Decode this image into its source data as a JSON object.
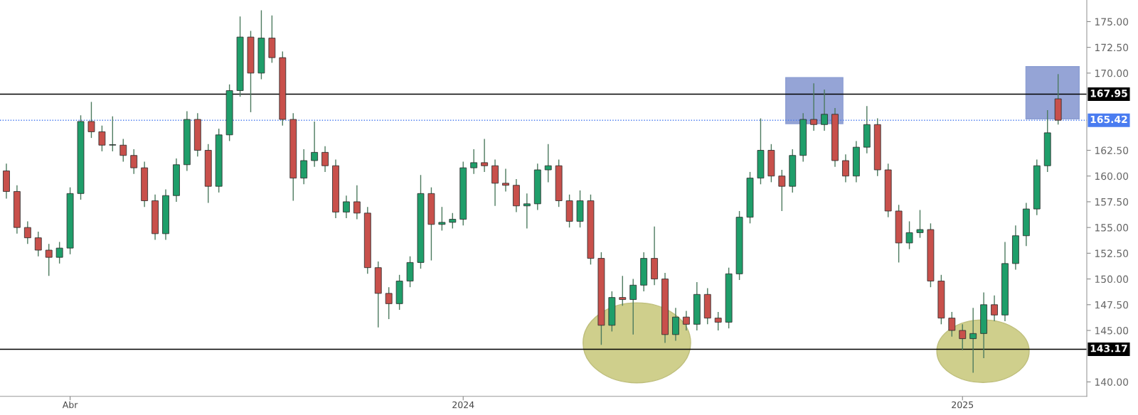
{
  "chart_data": {
    "type": "candlestick",
    "categories": [
      null,
      null,
      null,
      null,
      null,
      null,
      "Abr",
      null,
      null,
      null,
      null,
      null,
      null,
      null,
      null,
      null,
      null,
      null,
      null,
      null,
      null,
      null,
      null,
      null,
      null,
      null,
      null,
      null,
      null,
      null,
      null,
      null,
      null,
      null,
      null,
      null,
      null,
      null,
      null,
      null,
      null,
      null,
      null,
      "2024",
      null,
      null,
      null,
      null,
      null,
      null,
      null,
      null,
      null,
      null,
      null,
      null,
      null,
      null,
      null,
      null,
      null,
      null,
      null,
      null,
      null,
      null,
      null,
      null,
      null,
      null,
      null,
      null,
      null,
      null,
      null,
      null,
      null,
      null,
      null,
      null,
      null,
      null,
      null,
      null,
      null,
      null,
      null,
      null,
      null,
      null,
      "2025",
      null,
      null,
      null,
      null,
      null,
      null,
      null,
      null,
      null
    ],
    "ohlc": [
      [
        160.5,
        161.2,
        157.8,
        158.5
      ],
      [
        158.5,
        159.1,
        154.4,
        155.0
      ],
      [
        155.0,
        155.6,
        153.4,
        154.0
      ],
      [
        154.0,
        154.6,
        152.2,
        152.8
      ],
      [
        152.8,
        153.4,
        150.3,
        152.1
      ],
      [
        152.1,
        153.6,
        151.5,
        153.0
      ],
      [
        153.0,
        158.9,
        152.4,
        158.3
      ],
      [
        158.3,
        165.9,
        157.7,
        165.3
      ],
      [
        165.3,
        167.2,
        163.7,
        164.3
      ],
      [
        164.3,
        164.9,
        162.4,
        163.0
      ],
      [
        163.0,
        165.8,
        162.4,
        163.0
      ],
      [
        163.0,
        163.6,
        161.4,
        162.0
      ],
      [
        162.0,
        162.6,
        160.2,
        160.8
      ],
      [
        160.8,
        161.4,
        157.0,
        157.6
      ],
      [
        157.6,
        158.2,
        153.8,
        154.4
      ],
      [
        154.4,
        158.7,
        153.8,
        158.1
      ],
      [
        158.1,
        161.7,
        157.5,
        161.1
      ],
      [
        161.1,
        166.3,
        160.5,
        165.5
      ],
      [
        165.5,
        166.1,
        161.9,
        162.5
      ],
      [
        162.5,
        163.1,
        157.4,
        159.0
      ],
      [
        159.0,
        164.6,
        158.4,
        164.0
      ],
      [
        164.0,
        168.9,
        163.4,
        168.3
      ],
      [
        168.3,
        175.5,
        167.7,
        173.5
      ],
      [
        173.5,
        174.1,
        166.2,
        170.0
      ],
      [
        170.0,
        176.1,
        169.4,
        173.4
      ],
      [
        173.4,
        175.6,
        171.0,
        171.5
      ],
      [
        171.5,
        172.1,
        164.9,
        165.5
      ],
      [
        165.5,
        166.1,
        157.6,
        159.8
      ],
      [
        159.8,
        162.6,
        159.2,
        161.5
      ],
      [
        161.5,
        165.3,
        160.9,
        162.3
      ],
      [
        162.3,
        162.9,
        160.4,
        161.0
      ],
      [
        161.0,
        161.6,
        155.9,
        156.5
      ],
      [
        156.5,
        158.1,
        155.9,
        157.5
      ],
      [
        157.5,
        159.1,
        155.8,
        156.4
      ],
      [
        156.4,
        157.0,
        150.5,
        151.1
      ],
      [
        151.1,
        151.7,
        145.3,
        148.6
      ],
      [
        148.6,
        149.2,
        146.1,
        147.6
      ],
      [
        147.6,
        150.4,
        147.0,
        149.8
      ],
      [
        149.8,
        152.2,
        149.2,
        151.6
      ],
      [
        151.6,
        160.1,
        151.0,
        158.3
      ],
      [
        158.3,
        158.9,
        151.8,
        155.3
      ],
      [
        155.3,
        157.0,
        154.7,
        155.5
      ],
      [
        155.5,
        156.4,
        154.9,
        155.8
      ],
      [
        155.8,
        161.4,
        155.2,
        160.8
      ],
      [
        160.8,
        162.6,
        160.2,
        161.3
      ],
      [
        161.3,
        163.6,
        160.4,
        161.0
      ],
      [
        161.0,
        161.6,
        157.1,
        159.3
      ],
      [
        159.3,
        160.7,
        158.5,
        159.1
      ],
      [
        159.1,
        159.7,
        156.5,
        157.1
      ],
      [
        157.1,
        158.3,
        154.9,
        157.3
      ],
      [
        157.3,
        161.2,
        156.7,
        160.6
      ],
      [
        160.6,
        163.1,
        159.4,
        161.0
      ],
      [
        161.0,
        161.6,
        157.0,
        157.6
      ],
      [
        157.6,
        158.2,
        155.0,
        155.6
      ],
      [
        155.6,
        158.6,
        155.0,
        157.6
      ],
      [
        157.6,
        158.2,
        151.4,
        152.0
      ],
      [
        152.0,
        152.6,
        143.6,
        145.5
      ],
      [
        145.5,
        148.8,
        144.9,
        148.2
      ],
      [
        148.2,
        150.3,
        147.4,
        148.0
      ],
      [
        148.0,
        150.0,
        144.6,
        149.4
      ],
      [
        149.4,
        152.6,
        148.8,
        152.0
      ],
      [
        152.0,
        155.1,
        149.4,
        150.0
      ],
      [
        150.0,
        150.6,
        143.8,
        144.6
      ],
      [
        144.6,
        147.2,
        144.0,
        146.3
      ],
      [
        146.3,
        146.9,
        145.0,
        145.6
      ],
      [
        145.6,
        149.7,
        145.0,
        148.5
      ],
      [
        148.5,
        149.1,
        145.6,
        146.2
      ],
      [
        146.2,
        146.8,
        145.0,
        145.8
      ],
      [
        145.8,
        151.1,
        145.2,
        150.5
      ],
      [
        150.5,
        156.6,
        149.9,
        156.0
      ],
      [
        156.0,
        160.4,
        155.4,
        159.8
      ],
      [
        159.8,
        165.6,
        159.2,
        162.5
      ],
      [
        162.5,
        163.1,
        159.4,
        160.0
      ],
      [
        160.0,
        160.6,
        156.6,
        159.0
      ],
      [
        159.0,
        162.6,
        158.4,
        162.0
      ],
      [
        162.0,
        166.1,
        161.4,
        165.5
      ],
      [
        165.5,
        169.0,
        164.4,
        165.0
      ],
      [
        165.0,
        168.4,
        164.4,
        166.0
      ],
      [
        166.0,
        166.6,
        160.9,
        161.5
      ],
      [
        161.5,
        162.1,
        159.4,
        160.0
      ],
      [
        160.0,
        163.4,
        159.4,
        162.8
      ],
      [
        162.8,
        166.8,
        162.2,
        165.0
      ],
      [
        165.0,
        165.6,
        160.0,
        160.6
      ],
      [
        160.6,
        161.2,
        156.0,
        156.6
      ],
      [
        156.6,
        157.2,
        151.6,
        153.5
      ],
      [
        153.5,
        155.6,
        152.9,
        154.5
      ],
      [
        154.5,
        156.7,
        154.0,
        154.8
      ],
      [
        154.8,
        155.4,
        149.2,
        149.8
      ],
      [
        149.8,
        150.4,
        145.6,
        146.2
      ],
      [
        146.2,
        146.8,
        144.4,
        145.0
      ],
      [
        145.0,
        145.6,
        143.1,
        144.2
      ],
      [
        144.2,
        147.2,
        140.9,
        144.7
      ],
      [
        144.7,
        148.7,
        142.3,
        147.5
      ],
      [
        147.5,
        148.4,
        145.9,
        146.5
      ],
      [
        146.5,
        153.6,
        145.9,
        151.5
      ],
      [
        151.5,
        155.2,
        150.9,
        154.2
      ],
      [
        154.2,
        157.4,
        153.2,
        156.8
      ],
      [
        156.8,
        161.6,
        156.2,
        161.0
      ],
      [
        161.0,
        166.4,
        160.4,
        164.2
      ],
      [
        167.5,
        169.9,
        165.0,
        165.42
      ]
    ],
    "ylim": [
      138.6,
      177.1
    ],
    "yticks": [
      {
        "value": 140,
        "label": "140.00"
      },
      {
        "value": 145,
        "label": "145.00"
      },
      {
        "value": 147.5,
        "label": "147.50"
      },
      {
        "value": 150,
        "label": "150.00"
      },
      {
        "value": 152.5,
        "label": "152.50"
      },
      {
        "value": 155,
        "label": "155.00"
      },
      {
        "value": 157.5,
        "label": "157.50"
      },
      {
        "value": 160,
        "label": "160.00"
      },
      {
        "value": 162.5,
        "label": "162.50"
      },
      {
        "value": 170,
        "label": "170.00"
      },
      {
        "value": 172.5,
        "label": "172.50"
      },
      {
        "value": 175,
        "label": "175.00"
      }
    ],
    "ref_lines": [
      {
        "axis": "y",
        "value": 167.95,
        "label": "167.95",
        "color": "#000000"
      },
      {
        "axis": "y",
        "value": 165.42,
        "label": "165.42",
        "color": "#4a7cf0",
        "line_style": "dotted"
      },
      {
        "axis": "y",
        "value": 143.17,
        "label": "143.17",
        "color": "#000000"
      }
    ],
    "grid": false
  }
}
